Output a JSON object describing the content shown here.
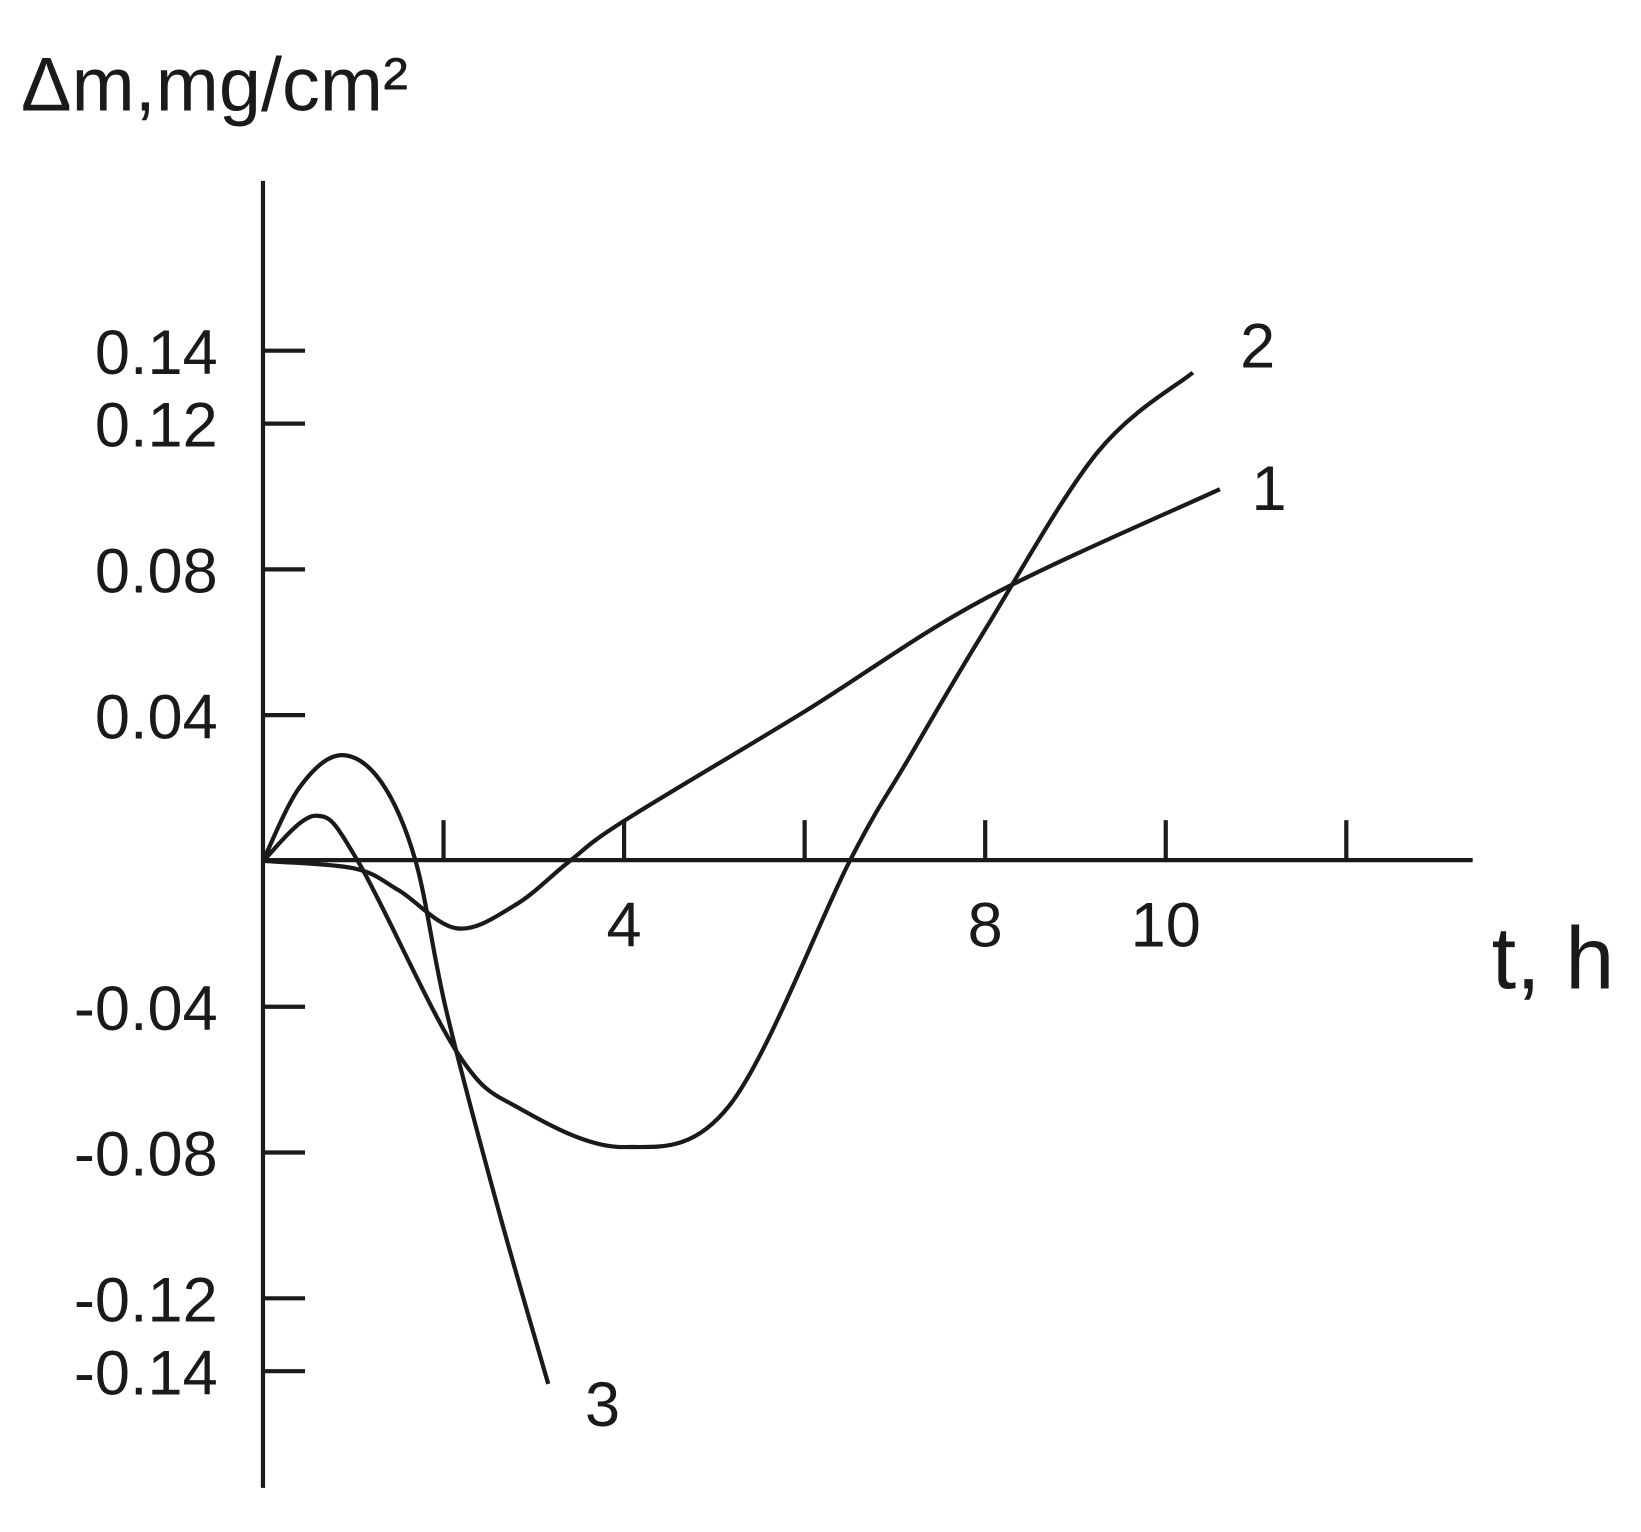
{
  "chart_data": {
    "type": "line",
    "y_label": "Δm,mg/cm²",
    "x_label": "t, h",
    "xlim": [
      0,
      13.4
    ],
    "ylim": [
      -0.172,
      0.1866
    ],
    "xticks": [
      {
        "value": 2,
        "label": null
      },
      4,
      {
        "value": 6,
        "label": null
      },
      8,
      10,
      {
        "value": 12,
        "label": null
      }
    ],
    "yticks": [
      0.14,
      0.12,
      0.08,
      0.04,
      -0.04,
      -0.08,
      -0.12,
      -0.14
    ],
    "series": [
      {
        "name": "1",
        "color": "#1a1a1a",
        "x": [
          0,
          1,
          1.5,
          2.15,
          2.8,
          3.4,
          4,
          6,
          8,
          10.6
        ],
        "values": [
          0,
          -0.002,
          -0.008,
          -0.0185,
          -0.012,
          0,
          0.011,
          0.041,
          0.072,
          0.102
        ]
      },
      {
        "name": "2",
        "color": "#1a1a1a",
        "x": [
          0,
          0.58,
          1.05,
          2.15,
          2.85,
          4,
          5.17,
          6.5,
          7.15,
          8,
          9.24,
          10.3
        ],
        "values": [
          0,
          0.0124,
          0,
          -0.0525,
          -0.068,
          -0.0785,
          -0.067,
          0,
          0.028,
          0.0635,
          0.112,
          0.134
        ]
      },
      {
        "name": "3",
        "color": "#1a1a1a",
        "x": [
          0,
          0.4,
          0.85,
          1.3,
          1.69,
          2.03,
          2.6,
          3.16
        ],
        "values": [
          0,
          0.02,
          0.029,
          0.022,
          0,
          -0.041,
          -0.095,
          -0.1435
        ]
      }
    ]
  }
}
